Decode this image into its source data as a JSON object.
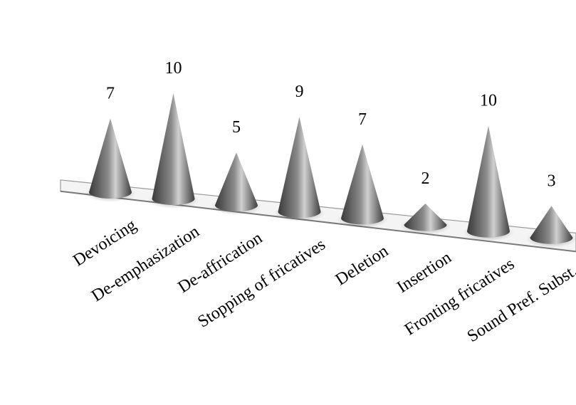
{
  "chart_data": {
    "type": "bar",
    "style": "3d-cone",
    "categories": [
      "Devoicing",
      "De-emphasization",
      "De-affrication",
      "Stopping of fricatives",
      "Deletion",
      "Insertion",
      "Fronting fricatives",
      "Sound Pref. Subst."
    ],
    "values": [
      7,
      10,
      5,
      9,
      7,
      2,
      10,
      3
    ],
    "ylim": [
      0,
      10
    ],
    "data_labels": true,
    "grid": false,
    "legend": "none",
    "colors": {
      "cone_dark": "#3a3a3a",
      "cone_light": "#c8c8c8",
      "base_fill": "#f4f4f4",
      "base_edge": "#9a9a9a"
    }
  }
}
